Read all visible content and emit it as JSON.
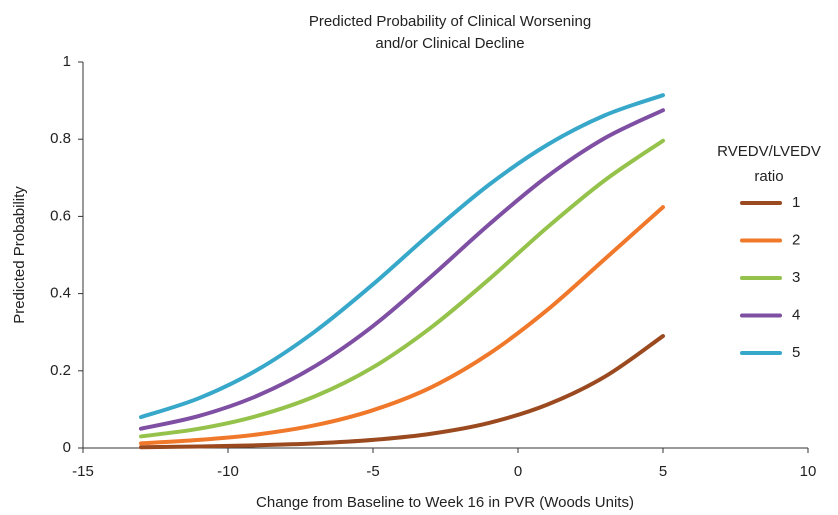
{
  "chart_data": {
    "type": "line",
    "title": [
      "Predicted Probability of Clinical Worsening",
      "and/or Clinical Decline"
    ],
    "x_label": "Change from Baseline to Week 16 in PVR (Woods Units)",
    "y_label": "Predicted Probability",
    "legend_title": [
      "RVEDV/LVEDV",
      "ratio"
    ],
    "legend_position": "right",
    "grid": false,
    "x": [
      -13,
      -11,
      -9,
      -7,
      -5,
      -3,
      -1,
      1,
      3,
      5
    ],
    "series": [
      {
        "name": "1",
        "color": "#9b4a20",
        "values": [
          0.002,
          0.004,
          0.007,
          0.012,
          0.021,
          0.037,
          0.065,
          0.112,
          0.185,
          0.29
        ]
      },
      {
        "name": "2",
        "color": "#f0782a",
        "values": [
          0.012,
          0.021,
          0.035,
          0.059,
          0.098,
          0.157,
          0.244,
          0.357,
          0.49,
          0.624
        ]
      },
      {
        "name": "3",
        "color": "#95c24b",
        "values": [
          0.03,
          0.05,
          0.083,
          0.134,
          0.209,
          0.312,
          0.437,
          0.571,
          0.694,
          0.796
        ]
      },
      {
        "name": "4",
        "color": "#7e4fa2",
        "values": [
          0.05,
          0.083,
          0.135,
          0.212,
          0.316,
          0.444,
          0.579,
          0.703,
          0.803,
          0.875
        ]
      },
      {
        "name": "5",
        "color": "#37a8ca",
        "values": [
          0.08,
          0.129,
          0.202,
          0.302,
          0.424,
          0.557,
          0.682,
          0.785,
          0.862,
          0.914
        ]
      }
    ],
    "xlim": [
      -15,
      10
    ],
    "xticks": [
      -15,
      -10,
      -5,
      0,
      5,
      10
    ],
    "ylim": [
      0,
      1
    ],
    "yticks": [
      0,
      0.2,
      0.4,
      0.6,
      0.8,
      1
    ]
  }
}
